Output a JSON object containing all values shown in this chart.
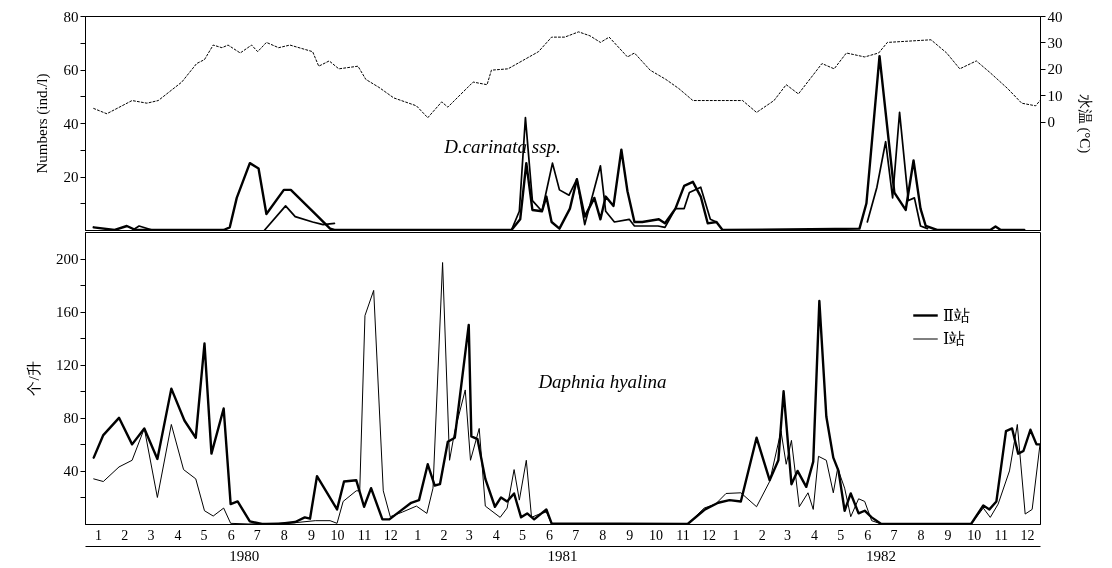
{
  "chart_data": [
    {
      "type": "line",
      "title": "D.carinata ssp.",
      "ylabel": "Numbers (ind./l)",
      "y2label": "水温 (°C)",
      "xlim": [
        "1980-01-01",
        "1982-12-31"
      ],
      "ylim": [
        0,
        80
      ],
      "yticks": [
        {
          "value": 10,
          "label": null
        },
        20,
        {
          "value": 30,
          "label": null
        },
        40,
        {
          "value": 50,
          "label": null
        },
        60,
        {
          "value": 70,
          "label": null
        },
        80
      ],
      "y2lim": [
        -41,
        40
      ],
      "y2ticks": [
        0,
        10,
        20,
        30,
        40
      ],
      "tick_labels": "y",
      "series": [
        {
          "color": "#000000",
          "x": [
            "1980-01-11",
            "1980-02-04",
            "1980-02-18",
            "1980-02-28",
            "1980-06-08",
            "1980-06-15",
            "1980-06-23",
            "1980-07-08",
            "1980-07-18",
            "1980-07-27",
            "1980-08-16",
            "1980-08-24",
            "1980-09-21",
            "1980-10-08",
            "1980-10-13",
            "1981-05-04",
            "1981-05-14",
            "1981-05-21",
            "1981-05-28",
            "1981-06-08",
            "1981-06-13",
            "1981-06-19",
            "1981-06-28",
            "1981-07-10",
            "1981-07-18",
            "1981-07-27",
            "1981-08-07",
            "1981-08-14",
            "1981-08-20",
            "1981-08-29",
            "1981-09-07",
            "1981-09-14",
            "1981-09-22",
            "1981-10-01",
            "1981-10-20",
            "1981-10-27",
            "1981-11-08",
            "1981-11-18",
            "1981-11-28",
            "1981-12-07",
            "1981-12-15",
            "1981-12-25",
            "1982-01-01",
            "1982-06-07",
            "1982-06-15",
            "1982-06-30",
            "1982-07-17",
            "1982-07-30",
            "1982-08-08",
            "1982-08-16",
            "1982-08-22",
            "1982-09-04",
            "1982-11-04",
            "1982-11-10",
            "1982-11-16",
            "1982-12-13"
          ],
          "values": [
            1,
            0,
            1.5,
            0,
            0,
            1,
            12,
            25,
            23,
            6,
            15,
            15,
            6,
            0.5,
            0,
            0,
            4,
            25,
            7.5,
            7,
            12.5,
            3,
            0.5,
            8,
            19,
            5,
            12,
            4,
            12.5,
            9,
            30,
            14.5,
            3,
            3,
            4,
            2.5,
            8,
            16.5,
            18,
            12.5,
            2.5,
            3,
            0,
            0.5,
            10,
            65,
            14,
            7.5,
            26,
            8,
            1.5,
            0,
            0,
            1.3,
            0,
            0
          ]
        },
        {
          "color": "#000000",
          "x": [
            "1980-02-25",
            "1980-03-03",
            "1980-03-18",
            "1980-05-01",
            "1980-07-25",
            "1980-08-18",
            "1980-08-29",
            "1980-09-18",
            "1980-09-30",
            "1980-10-13",
            "1981-01-22",
            "1981-05-04",
            "1981-05-13",
            "1981-05-20",
            "1981-05-28",
            "1981-06-08",
            "1981-06-20",
            "1981-06-28",
            "1981-07-09",
            "1981-07-18",
            "1981-07-27",
            "1981-08-14",
            "1981-08-20",
            "1981-08-30",
            "1981-09-16",
            "1981-09-22",
            "1981-10-19",
            "1981-10-27",
            "1981-11-08",
            "1981-11-18",
            "1981-11-24",
            "1981-12-07",
            "1981-12-18",
            "1981-12-25",
            "1982-03-16",
            "1982-06-16",
            "1982-06-27",
            "1982-07-07",
            "1982-07-15",
            "1982-07-23",
            "1982-08-02",
            "1982-08-09",
            "1982-08-16",
            "1982-08-24"
          ],
          "values": [
            0,
            1.5,
            0,
            null,
            0,
            9,
            5,
            3,
            2,
            2.5,
            null,
            0,
            7,
            42,
            11,
            7,
            25,
            15,
            13,
            19,
            2,
            24,
            7,
            3,
            4,
            1.5,
            1.5,
            1,
            8,
            8,
            14,
            16,
            4,
            3,
            null,
            3,
            16,
            33,
            12,
            44,
            11,
            12,
            1.5,
            0.5
          ]
        },
        {
          "color": "#000000",
          "axis": "y2",
          "line_style": "dotted",
          "x": [
            "1980-01-11",
            "1980-01-26",
            "1980-02-24",
            "1980-03-12",
            "1980-03-25",
            "1980-04-21",
            "1980-05-08",
            "1980-05-17",
            "1980-05-27",
            "1980-06-06",
            "1980-06-13",
            "1980-06-27",
            "1980-07-10",
            "1980-07-17",
            "1980-07-27",
            "1980-08-10",
            "1980-08-23",
            "1980-09-18",
            "1980-09-25",
            "1980-10-07",
            "1980-10-18",
            "1980-11-09",
            "1980-11-18",
            "1980-12-03",
            "1980-12-20",
            "1981-01-15",
            "1981-01-28",
            "1981-02-13",
            "1981-02-20",
            "1981-03-21",
            "1981-04-06",
            "1981-04-11",
            "1981-04-30",
            "1981-06-04",
            "1981-06-19",
            "1981-07-04",
            "1981-07-20",
            "1981-08-02",
            "1981-08-14",
            "1981-08-24",
            "1981-09-14",
            "1981-09-22",
            "1981-10-10",
            "1981-10-28",
            "1981-11-12",
            "1981-11-28",
            "1982-01-24",
            "1982-02-09",
            "1982-03-01",
            "1982-03-15",
            "1982-03-29",
            "1982-04-25",
            "1982-05-09",
            "1982-05-23",
            "1982-06-13",
            "1982-06-29",
            "1982-07-09",
            "1982-08-28",
            "1982-09-15",
            "1982-09-30",
            "1982-10-19",
            "1982-11-04",
            "1982-11-24",
            "1982-12-10",
            "1982-12-26",
            "1982-12-31"
          ],
          "values": [
            5,
            3,
            8,
            7,
            8,
            15,
            22,
            23.5,
            29,
            28,
            29,
            26,
            29,
            26.5,
            30,
            28,
            29,
            26.5,
            21,
            23,
            20,
            21,
            16,
            13,
            9,
            6,
            1.5,
            7.5,
            5.5,
            15,
            14,
            19.5,
            20,
            26.5,
            32,
            32,
            34,
            32.5,
            30,
            32,
            24.5,
            26,
            19.5,
            16,
            12.5,
            8,
            8,
            3.5,
            8,
            14,
            10.5,
            22,
            20,
            26,
            24.5,
            26,
            30,
            31,
            26,
            20,
            23,
            18.5,
            12.5,
            7,
            6,
            8
          ]
        }
      ]
    },
    {
      "type": "line",
      "title": "Daphnia hyalina",
      "ylabel": "个/升",
      "xlim": [
        "1980-01-01",
        "1982-12-31"
      ],
      "ylim": [
        0,
        220
      ],
      "yticks": [
        {
          "value": 20,
          "label": null
        },
        40,
        {
          "value": 60,
          "label": null
        },
        80,
        {
          "value": 100,
          "label": null
        },
        120,
        {
          "value": 140,
          "label": null
        },
        160,
        {
          "value": 180,
          "label": null
        },
        200
      ],
      "xticks": [
        {
          "value": "1980-01-16",
          "label": "1"
        },
        {
          "value": "1980-02-15",
          "label": "2"
        },
        {
          "value": "1980-03-16",
          "label": "3"
        },
        {
          "value": "1980-04-16",
          "label": "4"
        },
        {
          "value": "1980-05-16",
          "label": "5"
        },
        {
          "value": "1980-06-16",
          "label": "6"
        },
        {
          "value": "1980-07-16",
          "label": "7"
        },
        {
          "value": "1980-08-16",
          "label": "8"
        },
        {
          "value": "1980-09-16",
          "label": "9"
        },
        {
          "value": "1980-10-16",
          "label": "10"
        },
        {
          "value": "1980-11-16",
          "label": "11"
        },
        {
          "value": "1980-12-16",
          "label": "12"
        },
        {
          "value": "1981-01-16",
          "label": "1"
        },
        {
          "value": "1981-02-15",
          "label": "2"
        },
        {
          "value": "1981-03-16",
          "label": "3"
        },
        {
          "value": "1981-04-16",
          "label": "4"
        },
        {
          "value": "1981-05-16",
          "label": "5"
        },
        {
          "value": "1981-06-16",
          "label": "6"
        },
        {
          "value": "1981-07-16",
          "label": "7"
        },
        {
          "value": "1981-08-16",
          "label": "8"
        },
        {
          "value": "1981-09-16",
          "label": "9"
        },
        {
          "value": "1981-10-16",
          "label": "10"
        },
        {
          "value": "1981-11-16",
          "label": "11"
        },
        {
          "value": "1981-12-16",
          "label": "12"
        },
        {
          "value": "1982-01-16",
          "label": "1"
        },
        {
          "value": "1982-02-15",
          "label": "2"
        },
        {
          "value": "1982-03-16",
          "label": "3"
        },
        {
          "value": "1982-04-16",
          "label": "4"
        },
        {
          "value": "1982-05-16",
          "label": "5"
        },
        {
          "value": "1982-06-16",
          "label": "6"
        },
        {
          "value": "1982-07-16",
          "label": "7"
        },
        {
          "value": "1982-08-16",
          "label": "8"
        },
        {
          "value": "1982-09-16",
          "label": "9"
        },
        {
          "value": "1982-10-16",
          "label": "10"
        },
        {
          "value": "1982-11-16",
          "label": "11"
        },
        {
          "value": "1982-12-16",
          "label": "12"
        }
      ],
      "x2lim": [
        "1980-01-01",
        "1982-12-31"
      ],
      "x2ticks": [
        {
          "value": "1980-07-01",
          "label": "1980"
        },
        {
          "value": "1981-07-01",
          "label": "1981"
        },
        {
          "value": "1982-07-01",
          "label": "1982"
        }
      ],
      "legend": "top right",
      "series": [
        {
          "name": "Ⅱ站",
          "color": "#000000",
          "x": [
            "1980-01-11",
            "1980-01-22",
            "1980-02-09",
            "1980-02-24",
            "1980-03-09",
            "1980-03-24",
            "1980-04-09",
            "1980-04-24",
            "1980-05-07",
            "1980-05-17",
            "1980-05-25",
            "1980-06-08",
            "1980-06-16",
            "1980-06-24",
            "1980-07-08",
            "1980-07-22",
            "1980-08-10",
            "1980-08-29",
            "1980-09-09",
            "1980-09-15",
            "1980-09-23",
            "1980-10-16",
            "1980-10-24",
            "1980-11-07",
            "1980-11-16",
            "1980-11-24",
            "1980-12-07",
            "1980-12-15",
            "1980-12-30",
            "1981-01-09",
            "1981-01-18",
            "1981-01-28",
            "1981-02-05",
            "1981-02-11",
            "1981-02-20",
            "1981-02-28",
            "1981-03-16",
            "1981-03-19",
            "1981-03-26",
            "1981-04-04",
            "1981-04-15",
            "1981-04-22",
            "1981-04-29",
            "1981-05-07",
            "1981-05-15",
            "1981-05-22",
            "1981-05-30",
            "1981-06-13",
            "1981-06-19",
            "1981-11-22",
            "1981-12-12",
            "1981-12-27",
            "1982-01-09",
            "1982-01-22",
            "1982-02-09",
            "1982-02-24",
            "1982-03-06",
            "1982-03-12",
            "1982-03-21",
            "1982-03-28",
            "1982-04-07",
            "1982-04-15",
            "1982-04-22",
            "1982-04-30",
            "1982-05-08",
            "1982-05-14",
            "1982-05-21",
            "1982-05-28",
            "1982-06-06",
            "1982-06-13",
            "1982-06-21",
            "1982-07-02",
            "1982-10-13",
            "1982-10-27",
            "1982-11-03",
            "1982-11-11",
            "1982-11-22",
            "1982-11-29",
            "1982-12-06",
            "1982-12-12",
            "1982-12-20",
            "1982-12-27",
            "1982-12-31"
          ],
          "values": [
            50,
            67,
            80,
            60,
            72,
            49,
            102,
            78,
            65,
            136,
            53,
            87,
            15,
            17,
            2,
            0,
            0,
            1.5,
            5,
            4,
            36,
            11,
            32,
            33,
            13,
            27,
            3.5,
            3.5,
            11,
            16,
            18,
            45,
            29,
            30,
            62,
            65,
            150,
            66,
            64,
            34,
            13,
            20,
            17,
            23,
            5,
            8,
            3.5,
            11,
            0.5,
            0,
            11,
            16,
            18,
            17,
            65,
            33,
            48,
            100,
            30,
            40,
            28,
            47,
            168,
            81,
            50,
            40,
            10,
            23,
            8,
            10,
            5,
            0,
            0,
            14,
            11,
            17,
            70,
            72,
            53,
            55,
            71,
            60,
            60
          ]
        },
        {
          "name": "Ⅰ站",
          "color": "#000000",
          "x": [
            "1980-01-11",
            "1980-01-22",
            "1980-02-09",
            "1980-02-24",
            "1980-03-09",
            "1980-03-24",
            "1980-04-09",
            "1980-04-23",
            "1980-05-07",
            "1980-05-17",
            "1980-05-27",
            "1980-06-08",
            "1980-06-16",
            "1980-07-07",
            "1980-08-29",
            "1980-09-21",
            "1980-10-08",
            "1980-10-16",
            "1980-10-23",
            "1980-11-07",
            "1980-11-11",
            "1980-11-17",
            "1980-11-27",
            "1980-12-08",
            "1980-12-16",
            "1980-12-30",
            "1981-01-15",
            "1981-01-27",
            "1981-02-03",
            "1981-02-14",
            "1981-02-22",
            "1981-02-28",
            "1981-03-12",
            "1981-03-18",
            "1981-03-28",
            "1981-04-04",
            "1981-04-21",
            "1981-04-29",
            "1981-05-07",
            "1981-05-13",
            "1981-05-21",
            "1981-05-27",
            "1981-06-05",
            "1981-06-13",
            "1981-06-19",
            "1981-11-22",
            "1981-12-11",
            "1981-12-24",
            "1982-01-05",
            "1982-01-22",
            "1982-02-09",
            "1982-02-24",
            "1982-03-09",
            "1982-03-15",
            "1982-03-21",
            "1982-03-30",
            "1982-04-09",
            "1982-04-15",
            "1982-04-21",
            "1982-04-30",
            "1982-05-08",
            "1982-05-13",
            "1982-05-21",
            "1982-05-28",
            "1982-06-06",
            "1982-06-13",
            "1982-06-21",
            "1982-07-02",
            "1982-10-13",
            "1982-10-27",
            "1982-11-04",
            "1982-11-13",
            "1982-11-26",
            "1982-12-05",
            "1982-12-14",
            "1982-12-22",
            "1982-12-31"
          ],
          "values": [
            34,
            32,
            43,
            48,
            72,
            20,
            75,
            41,
            34,
            10,
            6,
            12,
            0.5,
            0,
            1,
            2.5,
            2.5,
            0.5,
            17,
            25,
            25,
            157,
            176,
            25,
            5.5,
            9,
            13.5,
            8,
            27,
            197,
            48,
            70,
            101,
            48,
            72,
            13.5,
            5,
            12,
            41,
            18,
            48,
            5,
            7.5,
            9,
            0,
            0,
            12,
            15,
            23,
            23.5,
            13,
            32,
            70,
            45,
            63,
            13,
            23.5,
            11,
            51,
            48,
            23.5,
            42,
            27,
            5.5,
            19,
            17,
            2.5,
            0,
            0,
            12,
            5,
            15,
            40,
            75,
            7.5,
            11,
            60
          ]
        }
      ]
    }
  ]
}
